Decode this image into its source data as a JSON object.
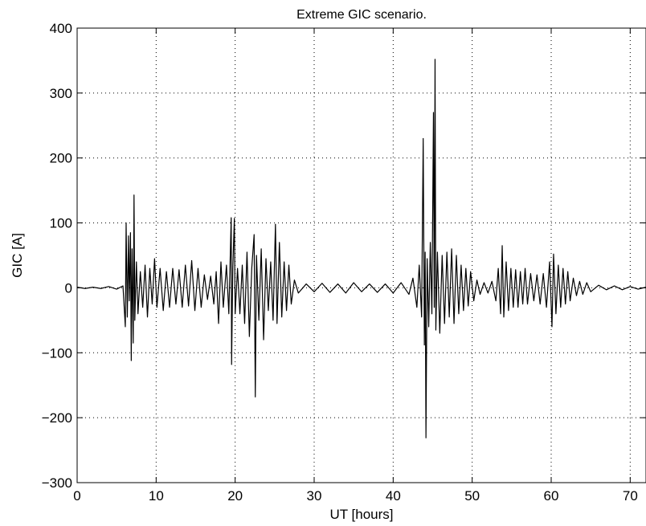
{
  "chart_data": {
    "type": "line",
    "title": "Extreme GIC scenario.",
    "xlabel": "UT [hours]",
    "ylabel": "GIC [A]",
    "xlim": [
      0,
      72
    ],
    "ylim": [
      -300,
      400
    ],
    "xticks": [
      0,
      10,
      20,
      30,
      40,
      50,
      60,
      70
    ],
    "yticks": [
      -300,
      -200,
      -100,
      0,
      100,
      200,
      300,
      400
    ],
    "xtick_labels": [
      "0",
      "10",
      "20",
      "30",
      "40",
      "50",
      "60",
      "70"
    ],
    "ytick_labels": [
      "−300",
      "−200",
      "−100",
      "0",
      "100",
      "200",
      "300",
      "400"
    ],
    "grid": true,
    "grid_style": "dotted",
    "line_color": "#000000",
    "series": [
      {
        "name": "",
        "points": [
          [
            0,
            1
          ],
          [
            1,
            -1
          ],
          [
            2,
            1
          ],
          [
            3,
            -1
          ],
          [
            4,
            2
          ],
          [
            5,
            -2
          ],
          [
            5.8,
            3
          ],
          [
            6.1,
            -60
          ],
          [
            6.2,
            100
          ],
          [
            6.35,
            -45
          ],
          [
            6.5,
            80
          ],
          [
            6.6,
            -20
          ],
          [
            6.75,
            85
          ],
          [
            6.85,
            -112
          ],
          [
            6.95,
            60
          ],
          [
            7.1,
            -85
          ],
          [
            7.2,
            143
          ],
          [
            7.3,
            -50
          ],
          [
            7.5,
            40
          ],
          [
            7.7,
            -40
          ],
          [
            8.0,
            25
          ],
          [
            8.3,
            -30
          ],
          [
            8.6,
            35
          ],
          [
            8.9,
            -45
          ],
          [
            9.2,
            30
          ],
          [
            9.5,
            -25
          ],
          [
            9.8,
            45
          ],
          [
            10.1,
            -30
          ],
          [
            10.5,
            30
          ],
          [
            10.9,
            -35
          ],
          [
            11.3,
            25
          ],
          [
            11.7,
            -30
          ],
          [
            12.1,
            30
          ],
          [
            12.5,
            -25
          ],
          [
            12.9,
            28
          ],
          [
            13.3,
            -30
          ],
          [
            13.7,
            35
          ],
          [
            14.1,
            -28
          ],
          [
            14.5,
            42
          ],
          [
            14.9,
            -35
          ],
          [
            15.3,
            30
          ],
          [
            15.7,
            -30
          ],
          [
            16.1,
            20
          ],
          [
            16.5,
            -18
          ],
          [
            16.9,
            18
          ],
          [
            17.3,
            -25
          ],
          [
            17.6,
            25
          ],
          [
            17.9,
            -55
          ],
          [
            18.2,
            40
          ],
          [
            18.5,
            -30
          ],
          [
            18.9,
            35
          ],
          [
            19.2,
            -40
          ],
          [
            19.5,
            108
          ],
          [
            19.55,
            -118
          ],
          [
            19.7,
            30
          ],
          [
            19.9,
            107
          ],
          [
            20.0,
            -40
          ],
          [
            20.3,
            30
          ],
          [
            20.6,
            -40
          ],
          [
            20.9,
            35
          ],
          [
            21.2,
            -55
          ],
          [
            21.5,
            55
          ],
          [
            21.8,
            -75
          ],
          [
            22.1,
            30
          ],
          [
            22.4,
            82
          ],
          [
            22.55,
            -168
          ],
          [
            22.7,
            50
          ],
          [
            23.0,
            -50
          ],
          [
            23.3,
            60
          ],
          [
            23.6,
            -80
          ],
          [
            23.9,
            45
          ],
          [
            24.2,
            -35
          ],
          [
            24.5,
            40
          ],
          [
            24.8,
            -50
          ],
          [
            25.1,
            98
          ],
          [
            25.3,
            -55
          ],
          [
            25.6,
            70
          ],
          [
            25.9,
            -45
          ],
          [
            26.2,
            40
          ],
          [
            26.5,
            -35
          ],
          [
            26.8,
            35
          ],
          [
            27.1,
            -25
          ],
          [
            27.5,
            12
          ],
          [
            28.0,
            -8
          ],
          [
            29,
            6
          ],
          [
            30,
            -6
          ],
          [
            31,
            7
          ],
          [
            32,
            -7
          ],
          [
            33,
            6
          ],
          [
            34,
            -8
          ],
          [
            35,
            8
          ],
          [
            36,
            -6
          ],
          [
            37,
            6
          ],
          [
            38,
            -7
          ],
          [
            39,
            6
          ],
          [
            40,
            -8
          ],
          [
            41,
            8
          ],
          [
            42,
            -10
          ],
          [
            42.5,
            15
          ],
          [
            43.0,
            -30
          ],
          [
            43.3,
            35
          ],
          [
            43.6,
            -45
          ],
          [
            43.8,
            230
          ],
          [
            43.95,
            -88
          ],
          [
            44.05,
            55
          ],
          [
            44.15,
            -231
          ],
          [
            44.3,
            45
          ],
          [
            44.5,
            -60
          ],
          [
            44.7,
            70
          ],
          [
            44.9,
            -40
          ],
          [
            45.1,
            270
          ],
          [
            45.2,
            -30
          ],
          [
            45.3,
            352
          ],
          [
            45.4,
            -65
          ],
          [
            45.6,
            55
          ],
          [
            45.9,
            -70
          ],
          [
            46.2,
            50
          ],
          [
            46.5,
            -55
          ],
          [
            46.8,
            55
          ],
          [
            47.1,
            -45
          ],
          [
            47.4,
            60
          ],
          [
            47.7,
            -55
          ],
          [
            48.0,
            50
          ],
          [
            48.3,
            -40
          ],
          [
            48.6,
            35
          ],
          [
            48.9,
            -35
          ],
          [
            49.2,
            30
          ],
          [
            49.5,
            -28
          ],
          [
            49.8,
            25
          ],
          [
            50.2,
            -20
          ],
          [
            50.6,
            12
          ],
          [
            51.0,
            -10
          ],
          [
            51.5,
            8
          ],
          [
            52.0,
            -8
          ],
          [
            52.5,
            10
          ],
          [
            53.0,
            -20
          ],
          [
            53.3,
            30
          ],
          [
            53.6,
            -40
          ],
          [
            53.8,
            65
          ],
          [
            54.0,
            -45
          ],
          [
            54.3,
            40
          ],
          [
            54.6,
            -35
          ],
          [
            54.9,
            30
          ],
          [
            55.2,
            -30
          ],
          [
            55.5,
            28
          ],
          [
            55.8,
            -30
          ],
          [
            56.1,
            25
          ],
          [
            56.4,
            -25
          ],
          [
            56.7,
            30
          ],
          [
            57.0,
            -25
          ],
          [
            57.4,
            22
          ],
          [
            57.8,
            -20
          ],
          [
            58.2,
            20
          ],
          [
            58.6,
            -25
          ],
          [
            59.0,
            22
          ],
          [
            59.4,
            -30
          ],
          [
            59.8,
            40
          ],
          [
            60.1,
            -60
          ],
          [
            60.3,
            52
          ],
          [
            60.6,
            -40
          ],
          [
            60.9,
            35
          ],
          [
            61.2,
            -30
          ],
          [
            61.5,
            30
          ],
          [
            61.8,
            -25
          ],
          [
            62.1,
            25
          ],
          [
            62.4,
            -20
          ],
          [
            62.8,
            15
          ],
          [
            63.2,
            -12
          ],
          [
            63.6,
            10
          ],
          [
            64.0,
            -10
          ],
          [
            64.5,
            8
          ],
          [
            65.0,
            -6
          ],
          [
            66,
            4
          ],
          [
            67,
            -3
          ],
          [
            68,
            3
          ],
          [
            69,
            -3
          ],
          [
            70,
            2
          ],
          [
            71,
            -2
          ],
          [
            72,
            1
          ]
        ]
      }
    ]
  }
}
